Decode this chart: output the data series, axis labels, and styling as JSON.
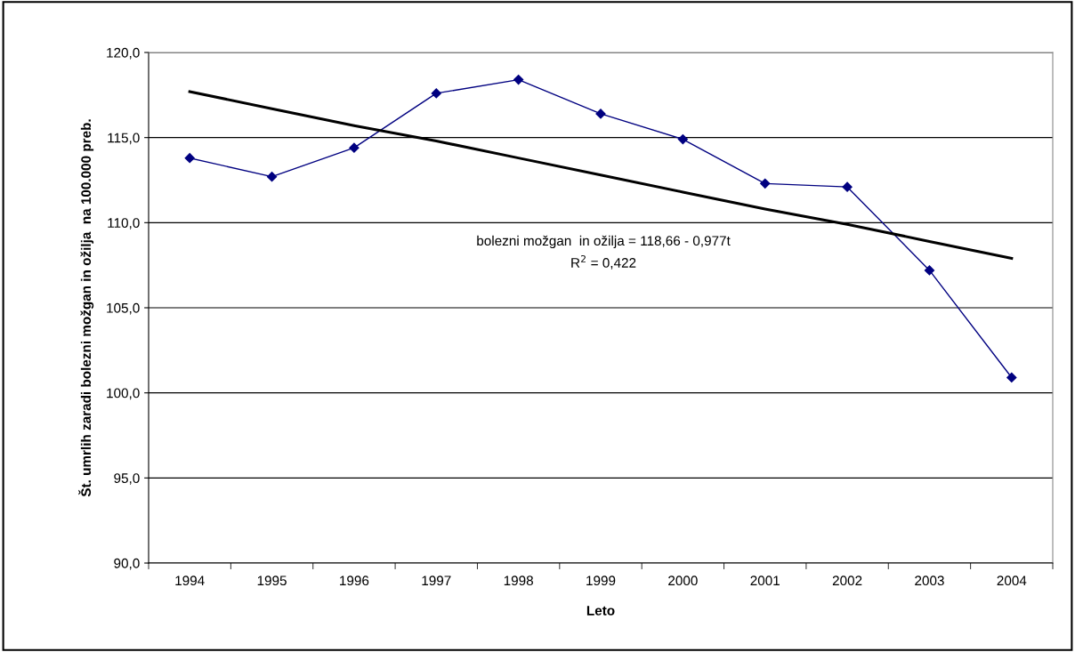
{
  "chart_data": {
    "type": "line",
    "xlabel": "Leto",
    "ylabel": "Št. umrlih zaradi bolezni možgan in ožilja  na 100.000 preb.",
    "categories": [
      "1994",
      "1995",
      "1996",
      "1997",
      "1998",
      "1999",
      "2000",
      "2001",
      "2002",
      "2003",
      "2004"
    ],
    "series": [
      {
        "color": "#000080",
        "marker": "diamond",
        "values": [
          113.8,
          112.7,
          114.4,
          117.6,
          118.4,
          116.4,
          114.9,
          112.3,
          112.1,
          107.2,
          100.9
        ]
      },
      {
        "color": "#000000",
        "marker": "none",
        "values": [
          117.7,
          116.7,
          115.7,
          114.8,
          113.8,
          112.8,
          111.8,
          110.8,
          109.9,
          108.9,
          107.9
        ]
      }
    ],
    "ylim": [
      90,
      120
    ],
    "yticks": [
      {
        "value": 90,
        "label": "90,0"
      },
      {
        "value": 95,
        "label": "95,0"
      },
      {
        "value": 100,
        "label": "100,0"
      },
      {
        "value": 105,
        "label": "105,0"
      },
      {
        "value": 110,
        "label": "110,0"
      },
      {
        "value": 115,
        "label": "115,0"
      },
      {
        "value": 120,
        "label": "120,0"
      }
    ],
    "grid": "y",
    "legend": false,
    "annotations": [
      "bolezni možgan  in ožilja = 118,66 - 0,977t",
      "R$^{2}$ = 0,422"
    ]
  }
}
